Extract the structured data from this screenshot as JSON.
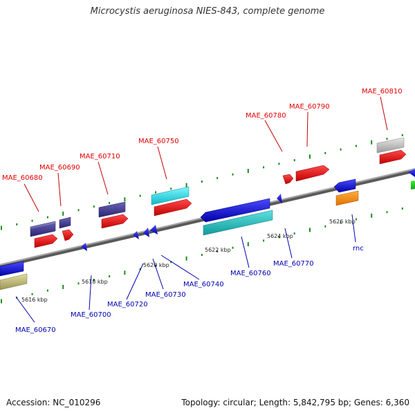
{
  "title": "Microcystis aeruginosa NIES-843, complete genome",
  "accession": "Accession: NC_010296",
  "summary": "Topology: circular; Length: 5,842,795 bp; Genes: 6,360",
  "colors": {
    "top_label": "#e00000",
    "bottom_label": "#0000b0",
    "backbone": "#8a8a8a",
    "tick": "#1a8a1a"
  },
  "kbp_labels": [
    "5616 kbp",
    "5618 kbp",
    "5620 kbp",
    "5622 kbp",
    "5624 kbp",
    "5626 kbp"
  ],
  "top_genes": [
    {
      "label": "MAE_60680"
    },
    {
      "label": "MAE_60690"
    },
    {
      "label": "MAE_60710"
    },
    {
      "label": "MAE_60750"
    },
    {
      "label": "MAE_60780"
    },
    {
      "label": "MAE_60790"
    },
    {
      "label": "MAE_60810"
    }
  ],
  "bottom_genes": [
    {
      "label": "MAE_60670"
    },
    {
      "label": "MAE_60700"
    },
    {
      "label": "MAE_60720"
    },
    {
      "label": "MAE_60730"
    },
    {
      "label": "MAE_60740"
    },
    {
      "label": "MAE_60760"
    },
    {
      "label": "MAE_60770"
    },
    {
      "label": "rnc"
    }
  ]
}
